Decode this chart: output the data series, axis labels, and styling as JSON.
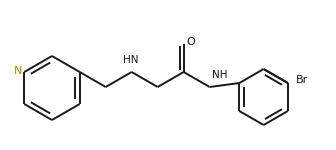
{
  "bg_color": "#ffffff",
  "bond_color": "#1a1a1a",
  "N_color": "#b8860b",
  "lw": 1.4,
  "figsize": [
    3.36,
    1.5
  ],
  "dpi": 100,
  "xlim": [
    0,
    3.36
  ],
  "ylim": [
    0,
    1.5
  ]
}
